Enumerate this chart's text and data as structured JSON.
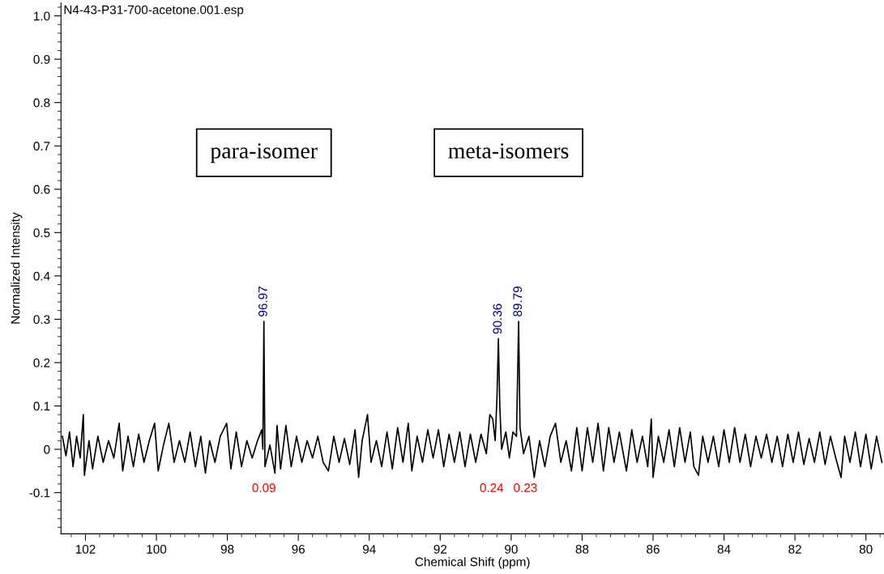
{
  "chart_data": {
    "type": "line",
    "xlabel": "Chemical Shift (ppm)",
    "ylabel": "Normalized Intensity",
    "xlim": [
      102.69,
      79.49
    ],
    "xticks": [
      102,
      100,
      98,
      96,
      94,
      92,
      90,
      88,
      86,
      84,
      82,
      80
    ],
    "ylim": [
      -0.195,
      1.03
    ],
    "yticks": [
      -0.1,
      0,
      0.1,
      0.2,
      0.3,
      0.4,
      0.5,
      0.6,
      0.7,
      0.8,
      0.9,
      {
        "value": 1.0,
        "label": "1.0"
      }
    ],
    "grid": false,
    "legend": false,
    "series": [
      {
        "color": "#000000",
        "x": [
          102.65,
          102.55,
          102.45,
          102.35,
          102.25,
          102.15,
          102.06,
          102.03,
          101.9,
          101.8,
          101.65,
          101.5,
          101.35,
          101.2,
          101.05,
          100.95,
          100.8,
          100.65,
          100.5,
          100.35,
          100.2,
          100.05,
          99.95,
          99.8,
          99.65,
          99.5,
          99.35,
          99.2,
          99.05,
          98.9,
          98.75,
          98.62,
          98.5,
          98.35,
          98.2,
          98.02,
          97.9,
          97.75,
          97.6,
          97.45,
          97.3,
          97.15,
          97.03,
          97.0,
          96.97,
          96.94,
          96.8,
          96.66,
          96.6,
          96.5,
          96.35,
          96.2,
          96.05,
          95.9,
          95.75,
          95.6,
          95.45,
          95.3,
          95.15,
          95.0,
          94.85,
          94.7,
          94.55,
          94.4,
          94.3,
          94.2,
          94.05,
          93.95,
          93.8,
          93.65,
          93.5,
          93.35,
          93.2,
          93.05,
          92.9,
          92.8,
          92.65,
          92.5,
          92.35,
          92.2,
          92.05,
          91.9,
          91.75,
          91.6,
          91.45,
          91.3,
          91.15,
          91.0,
          90.85,
          90.7,
          90.6,
          90.52,
          90.45,
          90.4,
          90.36,
          90.32,
          90.27,
          90.15,
          90.05,
          89.95,
          89.85,
          89.79,
          89.75,
          89.65,
          89.5,
          89.35,
          89.2,
          89.05,
          88.9,
          88.75,
          88.6,
          88.45,
          88.3,
          88.15,
          88.0,
          87.85,
          87.7,
          87.55,
          87.4,
          87.25,
          87.1,
          86.95,
          86.75,
          86.6,
          86.45,
          86.3,
          86.15,
          86.05,
          86.0,
          85.85,
          85.7,
          85.55,
          85.4,
          85.25,
          85.1,
          84.95,
          84.85,
          84.72,
          84.6,
          84.45,
          84.3,
          84.15,
          84.0,
          83.85,
          83.7,
          83.55,
          83.4,
          83.25,
          83.1,
          82.95,
          82.8,
          82.65,
          82.5,
          82.35,
          82.2,
          82.05,
          81.9,
          81.75,
          81.6,
          81.45,
          81.3,
          81.15,
          81.0,
          80.85,
          80.7,
          80.6,
          80.45,
          80.3,
          80.15,
          80.0,
          79.85,
          79.7,
          79.55
        ],
        "values": [
          0.03,
          -0.015,
          0.04,
          -0.04,
          0.03,
          -0.02,
          0.08,
          -0.06,
          0.02,
          -0.045,
          0.03,
          -0.03,
          0.02,
          -0.02,
          0.06,
          -0.05,
          0.03,
          -0.04,
          0.035,
          -0.03,
          0.02,
          0.06,
          -0.05,
          0.01,
          0.06,
          -0.03,
          0.02,
          -0.03,
          0.04,
          -0.04,
          0.03,
          -0.055,
          0.02,
          -0.03,
          0.03,
          0.06,
          -0.045,
          0.04,
          -0.04,
          0.02,
          -0.02,
          0.02,
          0.045,
          0.0,
          0.295,
          -0.04,
          0.01,
          -0.055,
          0.055,
          -0.045,
          0.055,
          -0.04,
          0.03,
          -0.03,
          0.02,
          -0.02,
          0.03,
          -0.03,
          -0.05,
          0.03,
          -0.03,
          0.025,
          -0.035,
          0.045,
          -0.065,
          0.02,
          0.08,
          -0.03,
          0.02,
          -0.04,
          0.04,
          -0.045,
          0.05,
          -0.03,
          0.06,
          -0.05,
          0.03,
          -0.03,
          0.045,
          -0.02,
          0.045,
          -0.04,
          0.035,
          -0.03,
          0.04,
          -0.04,
          0.035,
          -0.03,
          0.035,
          -0.01,
          0.08,
          0.07,
          0.02,
          0.12,
          0.255,
          0.1,
          0.0,
          0.04,
          -0.02,
          0.04,
          0.03,
          0.295,
          0.05,
          -0.01,
          0.03,
          -0.065,
          0.02,
          -0.04,
          0.03,
          0.06,
          -0.03,
          0.02,
          -0.05,
          0.05,
          -0.05,
          0.05,
          -0.03,
          0.06,
          -0.05,
          0.05,
          -0.03,
          0.04,
          -0.05,
          0.045,
          -0.03,
          0.03,
          -0.04,
          0.07,
          -0.065,
          0.03,
          -0.03,
          0.045,
          -0.04,
          0.05,
          -0.03,
          0.04,
          -0.04,
          -0.06,
          0.03,
          -0.03,
          0.03,
          -0.04,
          0.045,
          -0.03,
          0.05,
          -0.03,
          0.035,
          -0.04,
          0.03,
          -0.02,
          0.035,
          -0.03,
          0.03,
          -0.04,
          0.035,
          -0.03,
          0.04,
          -0.035,
          0.025,
          -0.03,
          0.04,
          -0.035,
          0.03,
          -0.02,
          -0.065,
          0.03,
          -0.03,
          0.04,
          -0.04,
          0.035,
          -0.045,
          0.03,
          -0.03
        ]
      }
    ],
    "annotations": [
      "N4-43-P31-700-acetone.001.esp",
      "para-isomer",
      "meta-isomers",
      {
        "text": "96.97",
        "x": 96.97,
        "y": 0.295
      },
      {
        "text": "90.36",
        "x": 90.36,
        "y": 0.255
      },
      {
        "text": "89.79",
        "x": 89.79,
        "y": 0.295
      },
      "0.09",
      "0.24",
      "0.23"
    ]
  }
}
